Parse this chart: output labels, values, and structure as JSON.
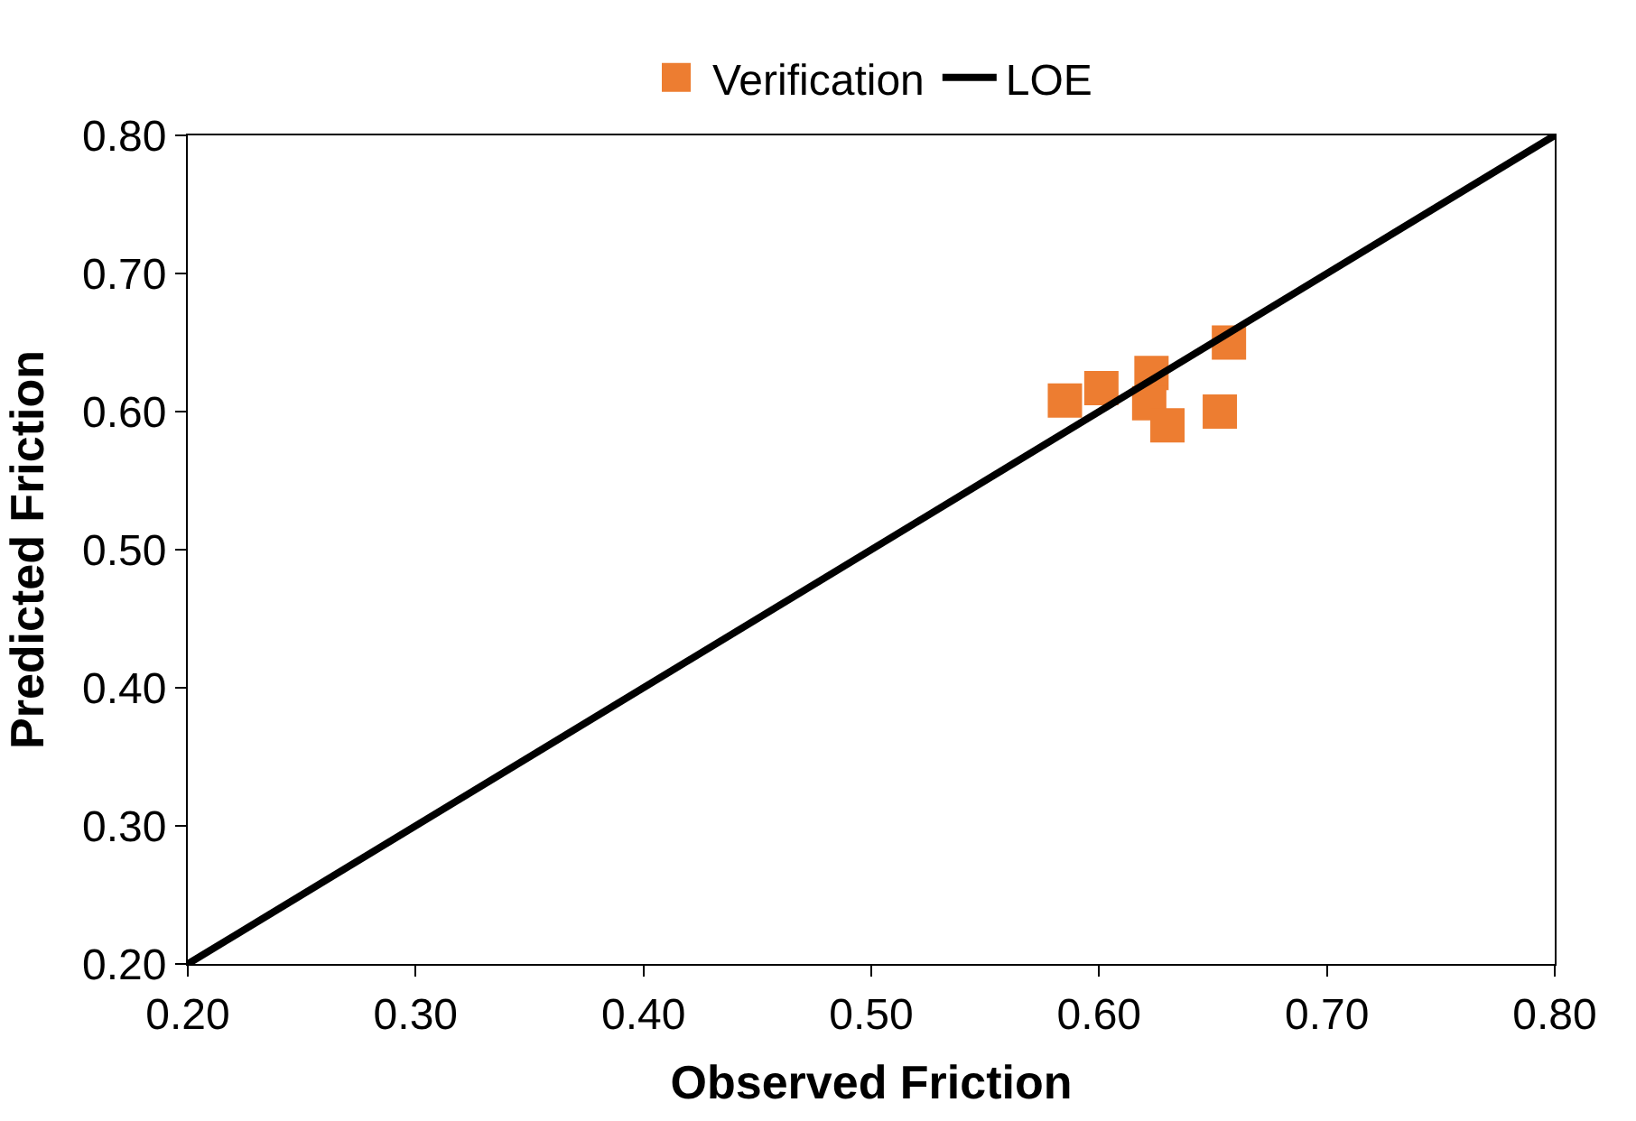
{
  "chart_data": {
    "type": "scatter",
    "xlabel": "Observed Friction",
    "ylabel": "Predicted Friction",
    "xlim": [
      0.2,
      0.8
    ],
    "ylim": [
      0.2,
      0.8
    ],
    "xticks": [
      {
        "value": 0.2,
        "label": "0.20"
      },
      {
        "value": 0.3,
        "label": "0.30"
      },
      {
        "value": 0.4,
        "label": "0.40"
      },
      {
        "value": 0.5,
        "label": "0.50"
      },
      {
        "value": 0.6,
        "label": "0.60"
      },
      {
        "value": 0.7,
        "label": "0.70"
      },
      {
        "value": 0.8,
        "label": "0.80"
      }
    ],
    "yticks": [
      {
        "value": 0.2,
        "label": "0.20"
      },
      {
        "value": 0.3,
        "label": "0.30"
      },
      {
        "value": 0.4,
        "label": "0.40"
      },
      {
        "value": 0.5,
        "label": "0.50"
      },
      {
        "value": 0.6,
        "label": "0.60"
      },
      {
        "value": 0.7,
        "label": "0.70"
      },
      {
        "value": 0.8,
        "label": "0.80"
      }
    ],
    "legend": "top",
    "series": [
      {
        "name": "Verification",
        "marker": "square",
        "color": "#ed7d31",
        "x": [
          0.585,
          0.601,
          0.623,
          0.622,
          0.63,
          0.657,
          0.653
        ],
        "values": [
          0.608,
          0.617,
          0.628,
          0.606,
          0.59,
          0.65,
          0.6
        ]
      },
      {
        "name": "LOE",
        "type": "line",
        "marker": "none",
        "line_style": "solid",
        "color": "#000000",
        "x": [
          0.2,
          0.8
        ],
        "values": [
          0.2,
          0.8
        ]
      }
    ]
  }
}
